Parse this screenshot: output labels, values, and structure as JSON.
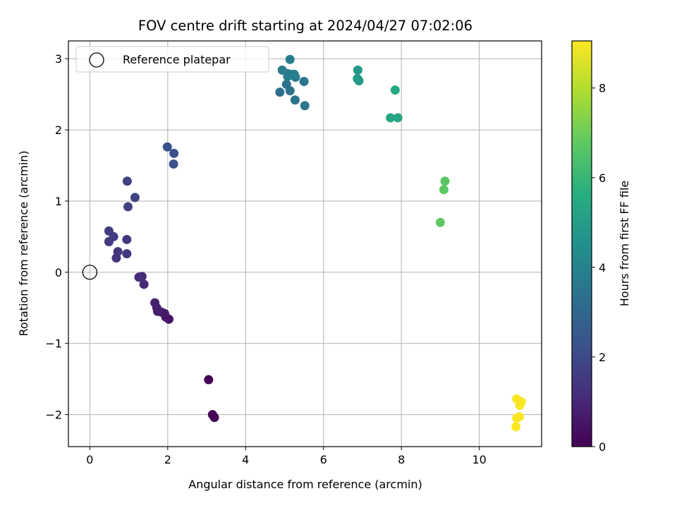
{
  "chart_data": {
    "type": "scatter",
    "title": "FOV centre drift starting at 2024/04/27 07:02:06",
    "xlabel": "Angular distance from reference (arcmin)",
    "ylabel": "Rotation from reference (arcmin)",
    "xlim": [
      -0.55,
      11.6
    ],
    "ylim": [
      -2.45,
      3.25
    ],
    "xticks": [
      0,
      2,
      4,
      6,
      8,
      10
    ],
    "yticks": [
      -2,
      -1,
      0,
      1,
      2,
      3
    ],
    "grid": true,
    "legend": {
      "placement": "top-left",
      "entries": [
        {
          "label": "Reference platepar",
          "marker": "open-circle"
        }
      ]
    },
    "reference_point": {
      "x": 0,
      "y": 0
    },
    "colorbar": {
      "label": "Hours from first FF file",
      "colormap": "viridis",
      "range": [
        0,
        9.05
      ],
      "ticks": [
        0,
        2,
        4,
        6,
        8
      ]
    },
    "points": [
      {
        "x": 3.05,
        "y": -1.51,
        "c": 0.0
      },
      {
        "x": 3.15,
        "y": -2.0,
        "c": 0.05
      },
      {
        "x": 3.2,
        "y": -2.04,
        "c": 0.1
      },
      {
        "x": 2.03,
        "y": -0.66,
        "c": 0.5
      },
      {
        "x": 1.95,
        "y": -0.63,
        "c": 0.55
      },
      {
        "x": 1.92,
        "y": -0.58,
        "c": 0.6
      },
      {
        "x": 1.84,
        "y": -0.56,
        "c": 0.65
      },
      {
        "x": 1.74,
        "y": -0.55,
        "c": 0.7
      },
      {
        "x": 1.72,
        "y": -0.5,
        "c": 0.75
      },
      {
        "x": 1.67,
        "y": -0.43,
        "c": 0.8
      },
      {
        "x": 1.39,
        "y": -0.17,
        "c": 1.0
      },
      {
        "x": 1.34,
        "y": -0.06,
        "c": 1.05
      },
      {
        "x": 1.26,
        "y": -0.07,
        "c": 1.1
      },
      {
        "x": 0.68,
        "y": 0.2,
        "c": 1.3
      },
      {
        "x": 0.72,
        "y": 0.29,
        "c": 1.35
      },
      {
        "x": 0.95,
        "y": 0.26,
        "c": 1.4
      },
      {
        "x": 0.95,
        "y": 0.46,
        "c": 1.45
      },
      {
        "x": 0.49,
        "y": 0.43,
        "c": 1.5
      },
      {
        "x": 0.61,
        "y": 0.5,
        "c": 1.55
      },
      {
        "x": 0.49,
        "y": 0.58,
        "c": 1.6
      },
      {
        "x": 0.98,
        "y": 0.92,
        "c": 1.7
      },
      {
        "x": 1.16,
        "y": 1.05,
        "c": 1.75
      },
      {
        "x": 0.96,
        "y": 1.28,
        "c": 1.8
      },
      {
        "x": 1.99,
        "y": 1.76,
        "c": 2.2
      },
      {
        "x": 2.16,
        "y": 1.67,
        "c": 2.25
      },
      {
        "x": 2.15,
        "y": 1.52,
        "c": 2.3
      },
      {
        "x": 4.88,
        "y": 2.53,
        "c": 3.3
      },
      {
        "x": 5.14,
        "y": 2.55,
        "c": 3.35
      },
      {
        "x": 5.05,
        "y": 2.64,
        "c": 3.4
      },
      {
        "x": 5.27,
        "y": 2.42,
        "c": 3.45
      },
      {
        "x": 5.52,
        "y": 2.34,
        "c": 3.5
      },
      {
        "x": 5.5,
        "y": 2.68,
        "c": 3.55
      },
      {
        "x": 5.28,
        "y": 2.74,
        "c": 3.6
      },
      {
        "x": 5.2,
        "y": 2.78,
        "c": 3.62
      },
      {
        "x": 5.08,
        "y": 2.79,
        "c": 3.65
      },
      {
        "x": 4.94,
        "y": 2.84,
        "c": 3.7
      },
      {
        "x": 5.08,
        "y": 2.75,
        "c": 3.75
      },
      {
        "x": 5.14,
        "y": 2.99,
        "c": 3.8
      },
      {
        "x": 5.25,
        "y": 2.78,
        "c": 3.85
      },
      {
        "x": 6.88,
        "y": 2.84,
        "c": 4.8
      },
      {
        "x": 6.87,
        "y": 2.72,
        "c": 4.85
      },
      {
        "x": 6.91,
        "y": 2.69,
        "c": 4.9
      },
      {
        "x": 7.72,
        "y": 2.17,
        "c": 5.3
      },
      {
        "x": 7.91,
        "y": 2.17,
        "c": 5.35
      },
      {
        "x": 7.84,
        "y": 2.56,
        "c": 5.4
      },
      {
        "x": 9.12,
        "y": 1.28,
        "c": 6.7
      },
      {
        "x": 9.09,
        "y": 1.16,
        "c": 6.75
      },
      {
        "x": 9.0,
        "y": 0.7,
        "c": 6.8
      },
      {
        "x": 10.96,
        "y": -1.78,
        "c": 9.0
      },
      {
        "x": 11.08,
        "y": -1.82,
        "c": 9.0
      },
      {
        "x": 11.04,
        "y": -1.87,
        "c": 9.0
      },
      {
        "x": 10.96,
        "y": -2.05,
        "c": 9.02
      },
      {
        "x": 11.03,
        "y": -2.03,
        "c": 9.03
      },
      {
        "x": 10.94,
        "y": -2.17,
        "c": 9.05
      }
    ]
  }
}
